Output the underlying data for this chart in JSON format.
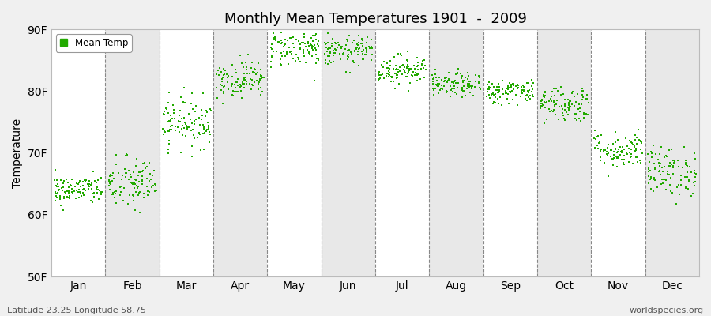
{
  "title": "Monthly Mean Temperatures 1901  -  2009",
  "ylabel": "Temperature",
  "xlabel_bottom_left": "Latitude 23.25 Longitude 58.75",
  "xlabel_bottom_right": "worldspecies.org",
  "legend_label": "Mean Temp",
  "dot_color": "#22aa00",
  "background_color": "#f0f0f0",
  "plot_bg_color": "#ffffff",
  "alt_band_color": "#e8e8e8",
  "ylim": [
    50,
    90
  ],
  "yticks": [
    50,
    60,
    70,
    80,
    90
  ],
  "ytick_labels": [
    "50F",
    "60F",
    "70F",
    "80F",
    "90F"
  ],
  "months": [
    "Jan",
    "Feb",
    "Mar",
    "Apr",
    "May",
    "Jun",
    "Jul",
    "Aug",
    "Sep",
    "Oct",
    "Nov",
    "Dec"
  ],
  "monthly_means_F": [
    64.0,
    65.0,
    75.0,
    82.0,
    87.0,
    86.5,
    83.5,
    81.0,
    80.0,
    78.0,
    70.5,
    67.0
  ],
  "monthly_stds_F": [
    1.2,
    2.2,
    2.0,
    1.5,
    1.5,
    1.2,
    1.2,
    1.0,
    1.0,
    1.5,
    1.5,
    2.0
  ],
  "n_years": 109,
  "seed": 42
}
